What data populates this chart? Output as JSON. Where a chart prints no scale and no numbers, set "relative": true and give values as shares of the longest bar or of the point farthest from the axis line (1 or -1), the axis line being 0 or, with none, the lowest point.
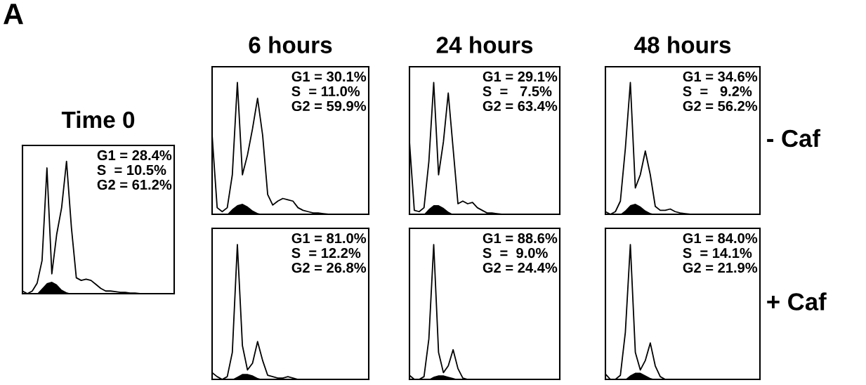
{
  "chart_data": [
    {
      "type": "line",
      "title": "Time 0",
      "relative": true,
      "categories": [
        null,
        null,
        null,
        null,
        null,
        null,
        null,
        null,
        null,
        null,
        null,
        null,
        null,
        null,
        null,
        null,
        null,
        null,
        null,
        null,
        null,
        null,
        null,
        null,
        null,
        null,
        null,
        null,
        null,
        null,
        null,
        null
      ],
      "annotations": [
        "G1 = 28.4%",
        "S  = 10.5%",
        "G2 = 61.2%",
        "A"
      ],
      "series": [
        {
          "color": "#000000",
          "values": [
            0.02,
            0.0,
            0.02,
            0.08,
            0.25,
            0.95,
            0.15,
            0.45,
            0.65,
            1.0,
            0.5,
            0.12,
            0.1,
            0.11,
            0.1,
            0.07,
            0.04,
            0.02,
            0.02,
            0.015,
            0.01,
            0.01,
            0.005,
            0.005,
            0.0,
            0.0,
            0.0,
            0.0,
            0.0,
            0.0,
            0.0,
            0.0
          ]
        },
        {
          "type": "area",
          "color": "#000000",
          "values": [
            null,
            null,
            null,
            0.0,
            0.04,
            0.08,
            0.09,
            0.07,
            0.03,
            0.01,
            0.0,
            null,
            null,
            null,
            null,
            null,
            null,
            null,
            null,
            null,
            null,
            null,
            null,
            null,
            null,
            null,
            null,
            null,
            null,
            null,
            null,
            null
          ]
        }
      ]
    },
    {
      "type": "line",
      "title": "6 hours",
      "relative": true,
      "categories": [
        null,
        null,
        null,
        null,
        null,
        null,
        null,
        null,
        null,
        null,
        null,
        null,
        null,
        null,
        null,
        null,
        null,
        null,
        null,
        null,
        null,
        null,
        null,
        null,
        null,
        null,
        null,
        null,
        null,
        null,
        null,
        null
      ],
      "annotations": [
        "G1 = 30.1%",
        "S  = 11.0%",
        "G2 = 59.9%"
      ],
      "series": [
        {
          "color": "#000000",
          "values": [
            0.6,
            0.05,
            0.02,
            0.05,
            0.3,
            1.0,
            0.3,
            0.45,
            0.65,
            0.88,
            0.6,
            0.15,
            0.07,
            0.1,
            0.12,
            0.11,
            0.1,
            0.05,
            0.03,
            0.02,
            0.01,
            0.01,
            0.005,
            0.0,
            0.0,
            0.0,
            0.0,
            0.0,
            0.0,
            0.0,
            0.0,
            0.0
          ]
        },
        {
          "type": "area",
          "color": "#000000",
          "values": [
            null,
            null,
            null,
            0.0,
            0.04,
            0.07,
            0.08,
            0.06,
            0.03,
            0.01,
            0.0,
            null,
            null,
            null,
            null,
            null,
            null,
            null,
            null,
            null,
            null,
            null,
            null,
            null,
            null,
            null,
            null,
            null,
            null,
            null,
            null,
            null
          ]
        }
      ]
    },
    {
      "type": "line",
      "title": "24 hours",
      "relative": true,
      "categories": [
        null,
        null,
        null,
        null,
        null,
        null,
        null,
        null,
        null,
        null,
        null,
        null,
        null,
        null,
        null,
        null,
        null,
        null,
        null,
        null,
        null,
        null,
        null,
        null,
        null,
        null,
        null,
        null,
        null,
        null,
        null,
        null
      ],
      "annotations": [
        "G1 = 29.1%",
        "S  =   7.5%",
        "G2 = 63.4%"
      ],
      "series": [
        {
          "color": "#000000",
          "values": [
            0.55,
            0.03,
            0.02,
            0.05,
            0.4,
            1.0,
            0.3,
            0.55,
            0.92,
            0.5,
            0.08,
            0.1,
            0.08,
            0.09,
            0.05,
            0.03,
            0.01,
            0.01,
            0.005,
            0.0,
            0.0,
            0.0,
            0.0,
            0.0,
            0.0,
            0.0,
            0.0,
            0.0,
            0.0,
            0.0,
            0.0,
            0.0
          ]
        },
        {
          "type": "area",
          "color": "#000000",
          "values": [
            null,
            null,
            null,
            0.0,
            0.04,
            0.07,
            0.07,
            0.05,
            0.02,
            0.0,
            null,
            null,
            null,
            null,
            null,
            null,
            null,
            null,
            null,
            null,
            null,
            null,
            null,
            null,
            null,
            null,
            null,
            null,
            null,
            null,
            null,
            null
          ]
        }
      ]
    },
    {
      "type": "line",
      "title": "48 hours",
      "relative": true,
      "categories": [
        null,
        null,
        null,
        null,
        null,
        null,
        null,
        null,
        null,
        null,
        null,
        null,
        null,
        null,
        null,
        null,
        null,
        null,
        null,
        null,
        null,
        null,
        null,
        null,
        null,
        null,
        null,
        null,
        null,
        null,
        null,
        null
      ],
      "annotations": [
        "G1 = 34.6%",
        "S  =   9.2%",
        "G2 = 56.2%",
        "- Caf"
      ],
      "series": [
        {
          "color": "#000000",
          "values": [
            0.02,
            0.0,
            0.02,
            0.1,
            0.5,
            1.0,
            0.2,
            0.3,
            0.48,
            0.3,
            0.06,
            0.03,
            0.03,
            0.04,
            0.02,
            0.01,
            0.005,
            0.0,
            0.0,
            0.0,
            0.0,
            0.0,
            0.0,
            0.0,
            0.0,
            0.0,
            0.0,
            0.0,
            0.0,
            0.0,
            0.0,
            0.0
          ]
        },
        {
          "type": "area",
          "color": "#000000",
          "values": [
            null,
            null,
            null,
            0.0,
            0.03,
            0.07,
            0.08,
            0.06,
            0.03,
            0.01,
            0.0,
            null,
            null,
            null,
            null,
            null,
            null,
            null,
            null,
            null,
            null,
            null,
            null,
            null,
            null,
            null,
            null,
            null,
            null,
            null,
            null,
            null
          ]
        }
      ]
    },
    {
      "type": "line",
      "relative": true,
      "categories": [
        null,
        null,
        null,
        null,
        null,
        null,
        null,
        null,
        null,
        null,
        null,
        null,
        null,
        null,
        null,
        null,
        null,
        null,
        null,
        null,
        null,
        null,
        null,
        null,
        null,
        null,
        null,
        null,
        null,
        null,
        null,
        null
      ],
      "annotations": [
        "G1 = 81.0%",
        "S  = 12.2%",
        "G2 = 26.8%"
      ],
      "series": [
        {
          "color": "#000000",
          "values": [
            0.05,
            0.02,
            0.0,
            0.02,
            0.2,
            1.0,
            0.25,
            0.07,
            0.12,
            0.28,
            0.14,
            0.03,
            0.02,
            0.01,
            0.01,
            0.02,
            0.01,
            0.0,
            0.0,
            0.0,
            0.0,
            0.0,
            0.0,
            0.0,
            0.0,
            0.0,
            0.0,
            0.0,
            0.0,
            0.0,
            0.0,
            0.0
          ]
        },
        {
          "type": "area",
          "color": "#000000",
          "values": [
            null,
            null,
            null,
            null,
            0.0,
            0.02,
            0.04,
            0.04,
            0.03,
            0.01,
            0.0,
            null,
            null,
            null,
            null,
            null,
            null,
            null,
            null,
            null,
            null,
            null,
            null,
            null,
            null,
            null,
            null,
            null,
            null,
            null,
            null,
            null
          ]
        }
      ]
    },
    {
      "type": "line",
      "relative": true,
      "categories": [
        null,
        null,
        null,
        null,
        null,
        null,
        null,
        null,
        null,
        null,
        null,
        null,
        null,
        null,
        null,
        null,
        null,
        null,
        null,
        null,
        null,
        null,
        null,
        null,
        null,
        null,
        null,
        null,
        null,
        null,
        null,
        null
      ],
      "annotations": [
        "G1 = 88.6%",
        "S  =  9.0%",
        "G2 = 24.4%"
      ],
      "series": [
        {
          "color": "#000000",
          "values": [
            0.03,
            0.0,
            0.0,
            0.02,
            0.3,
            1.0,
            0.2,
            0.05,
            0.1,
            0.22,
            0.08,
            0.01,
            0.0,
            0.0,
            0.0,
            0.0,
            0.0,
            0.0,
            0.0,
            0.0,
            0.0,
            0.0,
            0.0,
            0.0,
            0.0,
            0.0,
            0.0,
            0.0,
            0.0,
            0.0,
            0.0,
            0.0
          ]
        },
        {
          "type": "area",
          "color": "#000000",
          "values": [
            null,
            null,
            null,
            null,
            0.0,
            0.02,
            0.03,
            0.03,
            0.02,
            0.01,
            0.0,
            null,
            null,
            null,
            null,
            null,
            null,
            null,
            null,
            null,
            null,
            null,
            null,
            null,
            null,
            null,
            null,
            null,
            null,
            null,
            null,
            null
          ]
        }
      ]
    },
    {
      "type": "line",
      "relative": true,
      "categories": [
        null,
        null,
        null,
        null,
        null,
        null,
        null,
        null,
        null,
        null,
        null,
        null,
        null,
        null,
        null,
        null,
        null,
        null,
        null,
        null,
        null,
        null,
        null,
        null,
        null,
        null,
        null,
        null,
        null,
        null,
        null,
        null
      ],
      "annotations": [
        "G1 = 84.0%",
        "S  = 14.1%",
        "G2 = 21.9%",
        "+ Caf"
      ],
      "series": [
        {
          "color": "#000000",
          "values": [
            0.04,
            0.0,
            0.0,
            0.03,
            0.35,
            1.0,
            0.2,
            0.07,
            0.14,
            0.27,
            0.1,
            0.02,
            0.0,
            0.0,
            0.0,
            0.0,
            0.0,
            0.0,
            0.0,
            0.0,
            0.0,
            0.0,
            0.0,
            0.0,
            0.0,
            0.0,
            0.0,
            0.0,
            0.0,
            0.0,
            0.0,
            0.0
          ]
        },
        {
          "type": "area",
          "color": "#000000",
          "values": [
            null,
            null,
            null,
            null,
            0.0,
            0.03,
            0.05,
            0.05,
            0.03,
            0.01,
            0.0,
            null,
            null,
            null,
            null,
            null,
            null,
            null,
            null,
            null,
            null,
            null,
            null,
            null,
            null,
            null,
            null,
            null,
            null,
            null,
            null,
            null
          ]
        }
      ]
    }
  ]
}
